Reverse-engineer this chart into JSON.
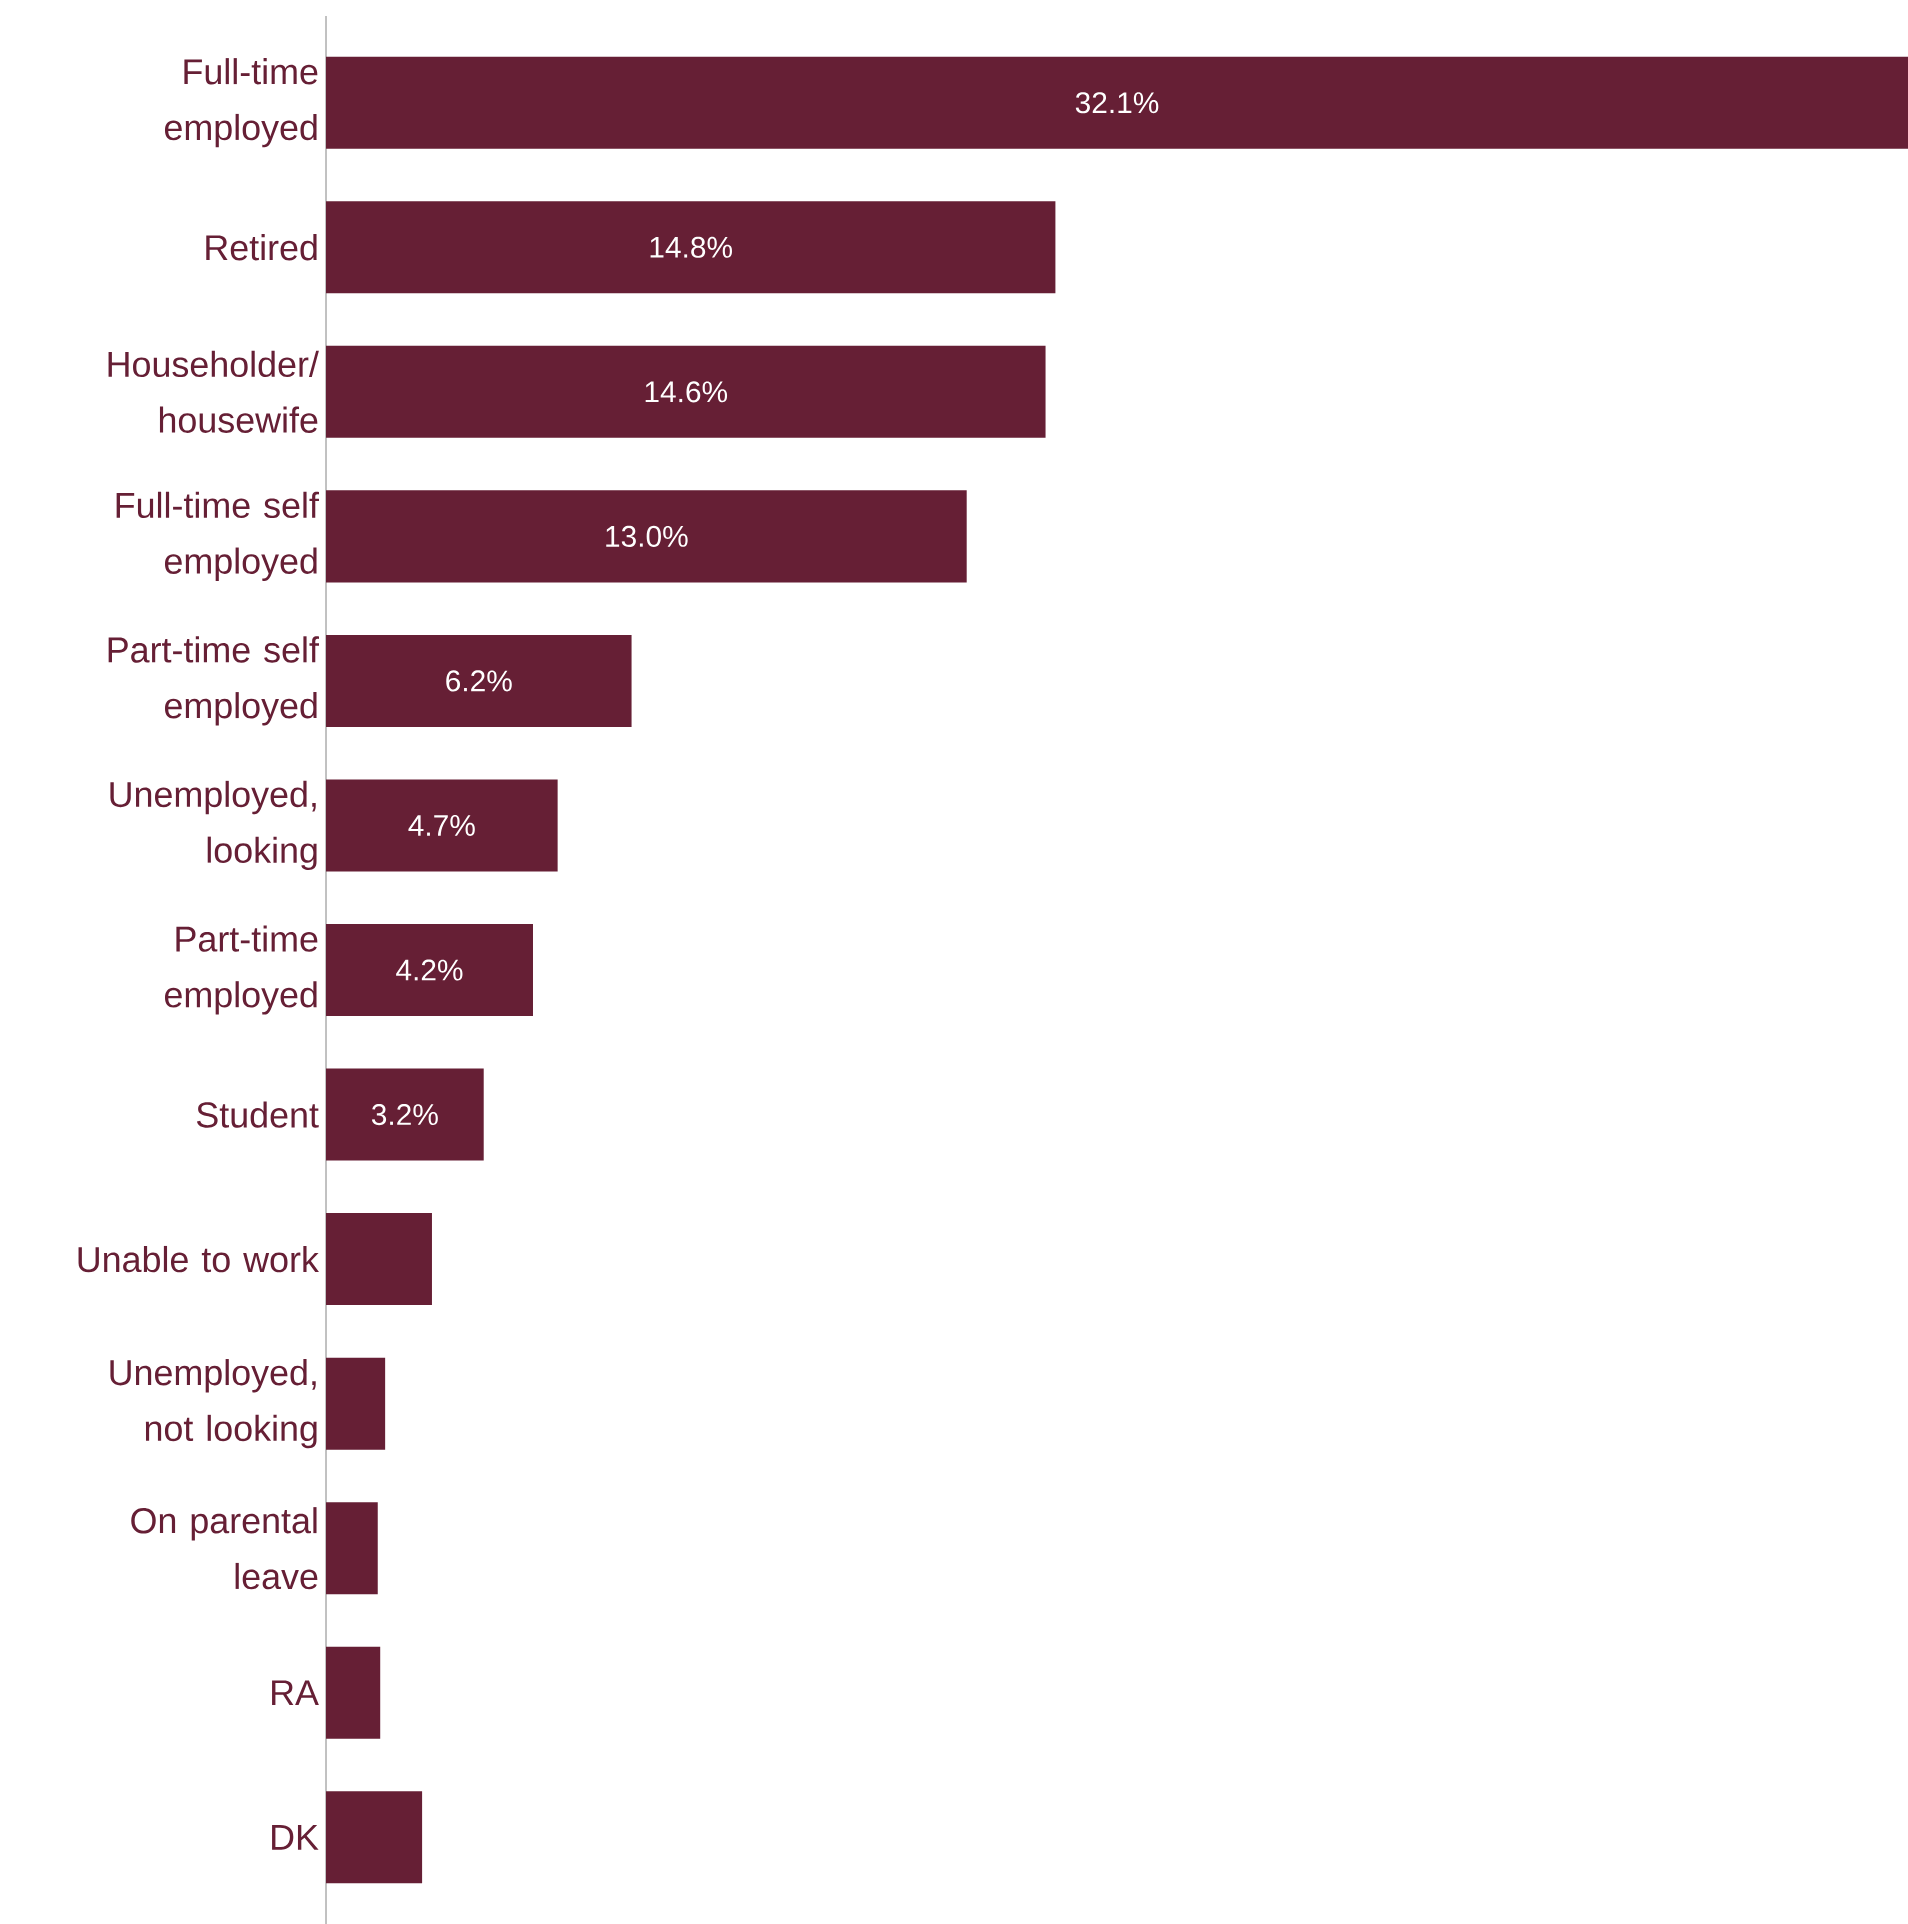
{
  "chart_data": {
    "type": "bar",
    "orientation": "horizontal",
    "color": "#661f35",
    "categories": [
      "Full-time employed",
      "Retired",
      "Householder/ housewife",
      "Full-time self employed",
      "Part-time self employed",
      "Unemployed, looking",
      "Part-time employed",
      "Student",
      "Unable to work",
      "Unemployed, not looking",
      "On parental leave",
      "RA",
      "DK"
    ],
    "values": [
      32.1,
      14.8,
      14.6,
      13.0,
      6.2,
      4.7,
      4.2,
      3.2,
      2.15,
      1.2,
      1.05,
      1.1,
      1.95
    ],
    "value_labels": [
      "32.1%",
      "14.8%",
      "14.6%",
      "13.0%",
      "6.2%",
      "4.7%",
      "4.2%",
      "3.2%",
      null,
      null,
      null,
      null,
      null
    ],
    "grid": false
  }
}
